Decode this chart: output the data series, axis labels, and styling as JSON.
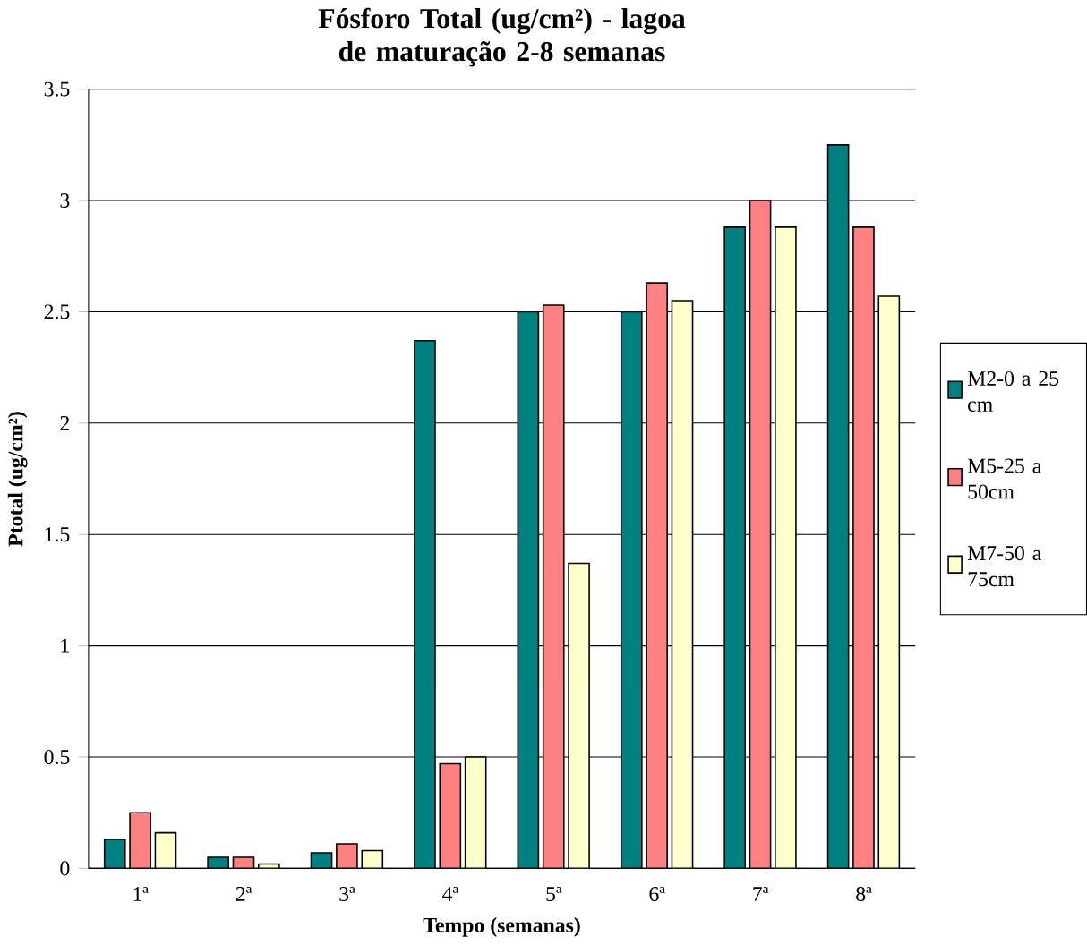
{
  "chart_data": {
    "type": "bar",
    "title": "Fósforo Total (ug/cm²) - lagoa de maturação 2-8 semanas",
    "xlabel": "Tempo (semanas)",
    "ylabel": "Ptotal (ug/cm²)",
    "categories": [
      "1ª",
      "2ª",
      "3ª",
      "4ª",
      "5ª",
      "6ª",
      "7ª",
      "8ª"
    ],
    "series": [
      {
        "name": "M2-0 a 25 cm",
        "color": "#008080",
        "values": [
          0.13,
          0.05,
          0.07,
          2.37,
          2.5,
          2.5,
          2.88,
          3.25
        ]
      },
      {
        "name": "M5-25 a 50cm",
        "color": "#ff8080",
        "values": [
          0.25,
          0.05,
          0.11,
          0.47,
          2.53,
          2.63,
          3.0,
          2.88
        ]
      },
      {
        "name": "M7-50 a 75cm",
        "color": "#ffffcc",
        "values": [
          0.16,
          0.02,
          0.08,
          0.5,
          1.37,
          2.55,
          2.88,
          2.57
        ]
      }
    ],
    "ylim": [
      0,
      3.5
    ],
    "yticks": [
      0,
      0.5,
      1,
      1.5,
      2,
      2.5,
      3,
      3.5
    ],
    "grid": "y",
    "legend": "right"
  }
}
